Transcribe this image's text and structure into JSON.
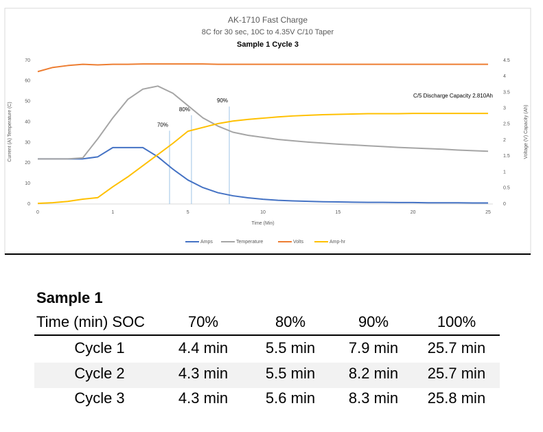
{
  "chart_data": {
    "type": "line",
    "title": "AK-1710 Fast Charge",
    "subtitle": "8C for 30 sec, 10C to 4.35V C/10 Taper",
    "subtitle2": "Sample 1 Cycle 3",
    "xlabel": "Time (Min)",
    "ylabel": "Current (A) Temperature (C)",
    "y2label": "Voltage (V) Capacity (Ah)",
    "annotation": "C/5 Discharge Capacity 2.810Ah",
    "categories": [
      "0",
      null,
      null,
      null,
      null,
      "1",
      null,
      null,
      null,
      null,
      "5",
      null,
      null,
      null,
      null,
      "10",
      null,
      null,
      null,
      null,
      "15",
      null,
      null,
      null,
      null,
      "20",
      null,
      null,
      null,
      null,
      "25"
    ],
    "ylim": [
      0,
      70
    ],
    "yticks": [
      0,
      10,
      20,
      30,
      40,
      50,
      60,
      70
    ],
    "y2lim": [
      0,
      4.5
    ],
    "y2ticks": [
      0,
      0.5,
      1,
      1.5,
      2,
      2.5,
      3,
      3.5,
      4,
      4.5
    ],
    "legend": "bottom",
    "series": [
      {
        "name": "Amps",
        "color": "#4472c4",
        "values": [
          22,
          22,
          22,
          22,
          23,
          27.5,
          27.5,
          27.5,
          23,
          17,
          11.7,
          8,
          5.5,
          4,
          3,
          2.3,
          1.8,
          1.5,
          1.3,
          1.1,
          1,
          0.9,
          0.8,
          0.8,
          0.7,
          0.7,
          0.6,
          0.6,
          0.6,
          0.5,
          0.5
        ]
      },
      {
        "name": "Temperature",
        "color": "#a5a5a5",
        "values": [
          22,
          22,
          22,
          22.5,
          31.8,
          42,
          51,
          56,
          57.5,
          54,
          48,
          42,
          38,
          35,
          33.5,
          32.5,
          31.5,
          30.8,
          30.2,
          29.7,
          29.2,
          28.8,
          28.4,
          28,
          27.6,
          27.3,
          27,
          26.7,
          26.3,
          26,
          25.7
        ]
      },
      {
        "name": "Volts",
        "color": "#ed7d31",
        "axis": "y2",
        "values": [
          4.15,
          4.28,
          4.34,
          4.38,
          4.36,
          4.38,
          4.38,
          4.39,
          4.39,
          4.39,
          4.39,
          4.39,
          4.38,
          4.38,
          4.38,
          4.38,
          4.38,
          4.38,
          4.38,
          4.38,
          4.38,
          4.38,
          4.38,
          4.38,
          4.38,
          4.38,
          4.38,
          4.38,
          4.38,
          4.38,
          4.38
        ]
      },
      {
        "name": "Amp-hr",
        "color": "#ffc000",
        "axis": "y2",
        "values": [
          0.02,
          0.04,
          0.08,
          0.15,
          0.2,
          0.54,
          0.85,
          1.2,
          1.55,
          1.9,
          2.28,
          2.4,
          2.52,
          2.6,
          2.65,
          2.69,
          2.73,
          2.76,
          2.78,
          2.8,
          2.81,
          2.82,
          2.83,
          2.83,
          2.83,
          2.84,
          2.84,
          2.84,
          2.84,
          2.84,
          2.84
        ]
      }
    ],
    "markers": [
      {
        "label": "70%",
        "x": 8.78
      },
      {
        "label": "80%",
        "x": 10.24
      },
      {
        "label": "90%",
        "x": 12.76
      }
    ]
  },
  "table": {
    "title": "Sample 1",
    "header": [
      "Time (min) SOC",
      "70%",
      "80%",
      "90%",
      "100%"
    ],
    "rows": [
      [
        "Cycle 1",
        "4.4 min",
        "5.5 min",
        "7.9 min",
        "25.7 min"
      ],
      [
        "Cycle 2",
        "4.3 min",
        "5.5 min",
        "8.2 min",
        "25.7 min"
      ],
      [
        "Cycle 3",
        "4.3 min",
        "5.6 min",
        "8.3 min",
        "25.8 min"
      ]
    ]
  }
}
